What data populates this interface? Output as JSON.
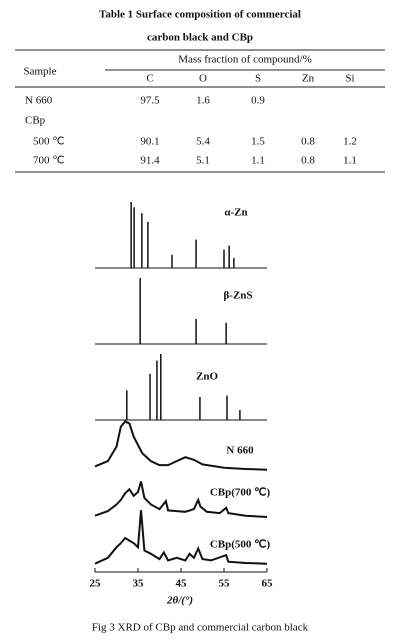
{
  "table": {
    "title": [
      "Table 1   Surface composition of commercial",
      "carbon black and CBp"
    ],
    "header": {
      "sample": "Sample",
      "group": "Mass fraction of compound/%",
      "columns": [
        "C",
        "O",
        "S",
        "Zn",
        "Si"
      ]
    },
    "rows": [
      [
        "N 660",
        97.5,
        1.6,
        0.9,
        null,
        null
      ],
      [
        "CBp",
        null,
        null,
        null,
        null,
        null
      ],
      [
        "500 ℃",
        90.1,
        5.4,
        1.5,
        0.8,
        1.2
      ],
      [
        "700 ℃",
        91.4,
        5.1,
        1.1,
        0.8,
        1.1
      ]
    ]
  },
  "chart_data": {
    "type": "xrd",
    "x_label": "2θ/(°)",
    "xlim": [
      25,
      65
    ],
    "xticks": [
      25,
      35,
      45,
      55,
      65
    ],
    "color": "#111111",
    "series": [
      {
        "name": "α-Zn",
        "style": "sticks",
        "x": [
          33.4,
          34.1,
          35.9,
          37.3,
          42.9,
          48.5,
          55.0,
          56.2,
          57.3
        ],
        "values": [
          100,
          92,
          83,
          70,
          20,
          43,
          28,
          34,
          15
        ]
      },
      {
        "name": "β-ZnS",
        "style": "sticks",
        "x": [
          35.5,
          48.5,
          55.5
        ],
        "values": [
          100,
          38,
          32
        ]
      },
      {
        "name": "ZnO",
        "style": "sticks",
        "x": [
          32.4,
          37.8,
          39.4,
          40.3,
          49.4,
          55.7,
          58.7
        ],
        "values": [
          45,
          70,
          90,
          100,
          35,
          37,
          15
        ]
      },
      {
        "name": "N 660",
        "style": "curve",
        "x": [
          25,
          28,
          30,
          31,
          32,
          33,
          34,
          36,
          38,
          40,
          42,
          44,
          46,
          48,
          50,
          55,
          60,
          65
        ],
        "values": [
          10,
          18,
          40,
          70,
          78,
          75,
          55,
          30,
          18,
          12,
          12,
          18,
          24,
          20,
          13,
          8,
          6,
          5
        ]
      },
      {
        "name": "CBp(700 ℃)",
        "style": "curve",
        "x": [
          25,
          28,
          30,
          31,
          32,
          33,
          34,
          35,
          35.7,
          36.5,
          38,
          40,
          41.5,
          42,
          44,
          46,
          48,
          49,
          49.5,
          51,
          54,
          55.5,
          56,
          60,
          65
        ],
        "values": [
          8,
          15,
          25,
          32,
          42,
          48,
          38,
          44,
          60,
          35,
          25,
          18,
          30,
          16,
          15,
          14,
          18,
          32,
          22,
          14,
          12,
          20,
          12,
          8,
          6
        ]
      },
      {
        "name": "CBp(500 ℃)",
        "style": "curve",
        "x": [
          25,
          28,
          30,
          31,
          32,
          33,
          34,
          35,
          35.7,
          36.5,
          38,
          40,
          41,
          42,
          44,
          46,
          47,
          48,
          49,
          50,
          52,
          55.5,
          56,
          60,
          65
        ],
        "values": [
          5,
          14,
          30,
          36,
          44,
          40,
          36,
          30,
          86,
          25,
          20,
          12,
          22,
          10,
          14,
          10,
          20,
          14,
          28,
          12,
          10,
          18,
          8,
          6,
          5
        ]
      }
    ]
  },
  "caption": "Fig 3   XRD of CBp and commercial carbon black"
}
